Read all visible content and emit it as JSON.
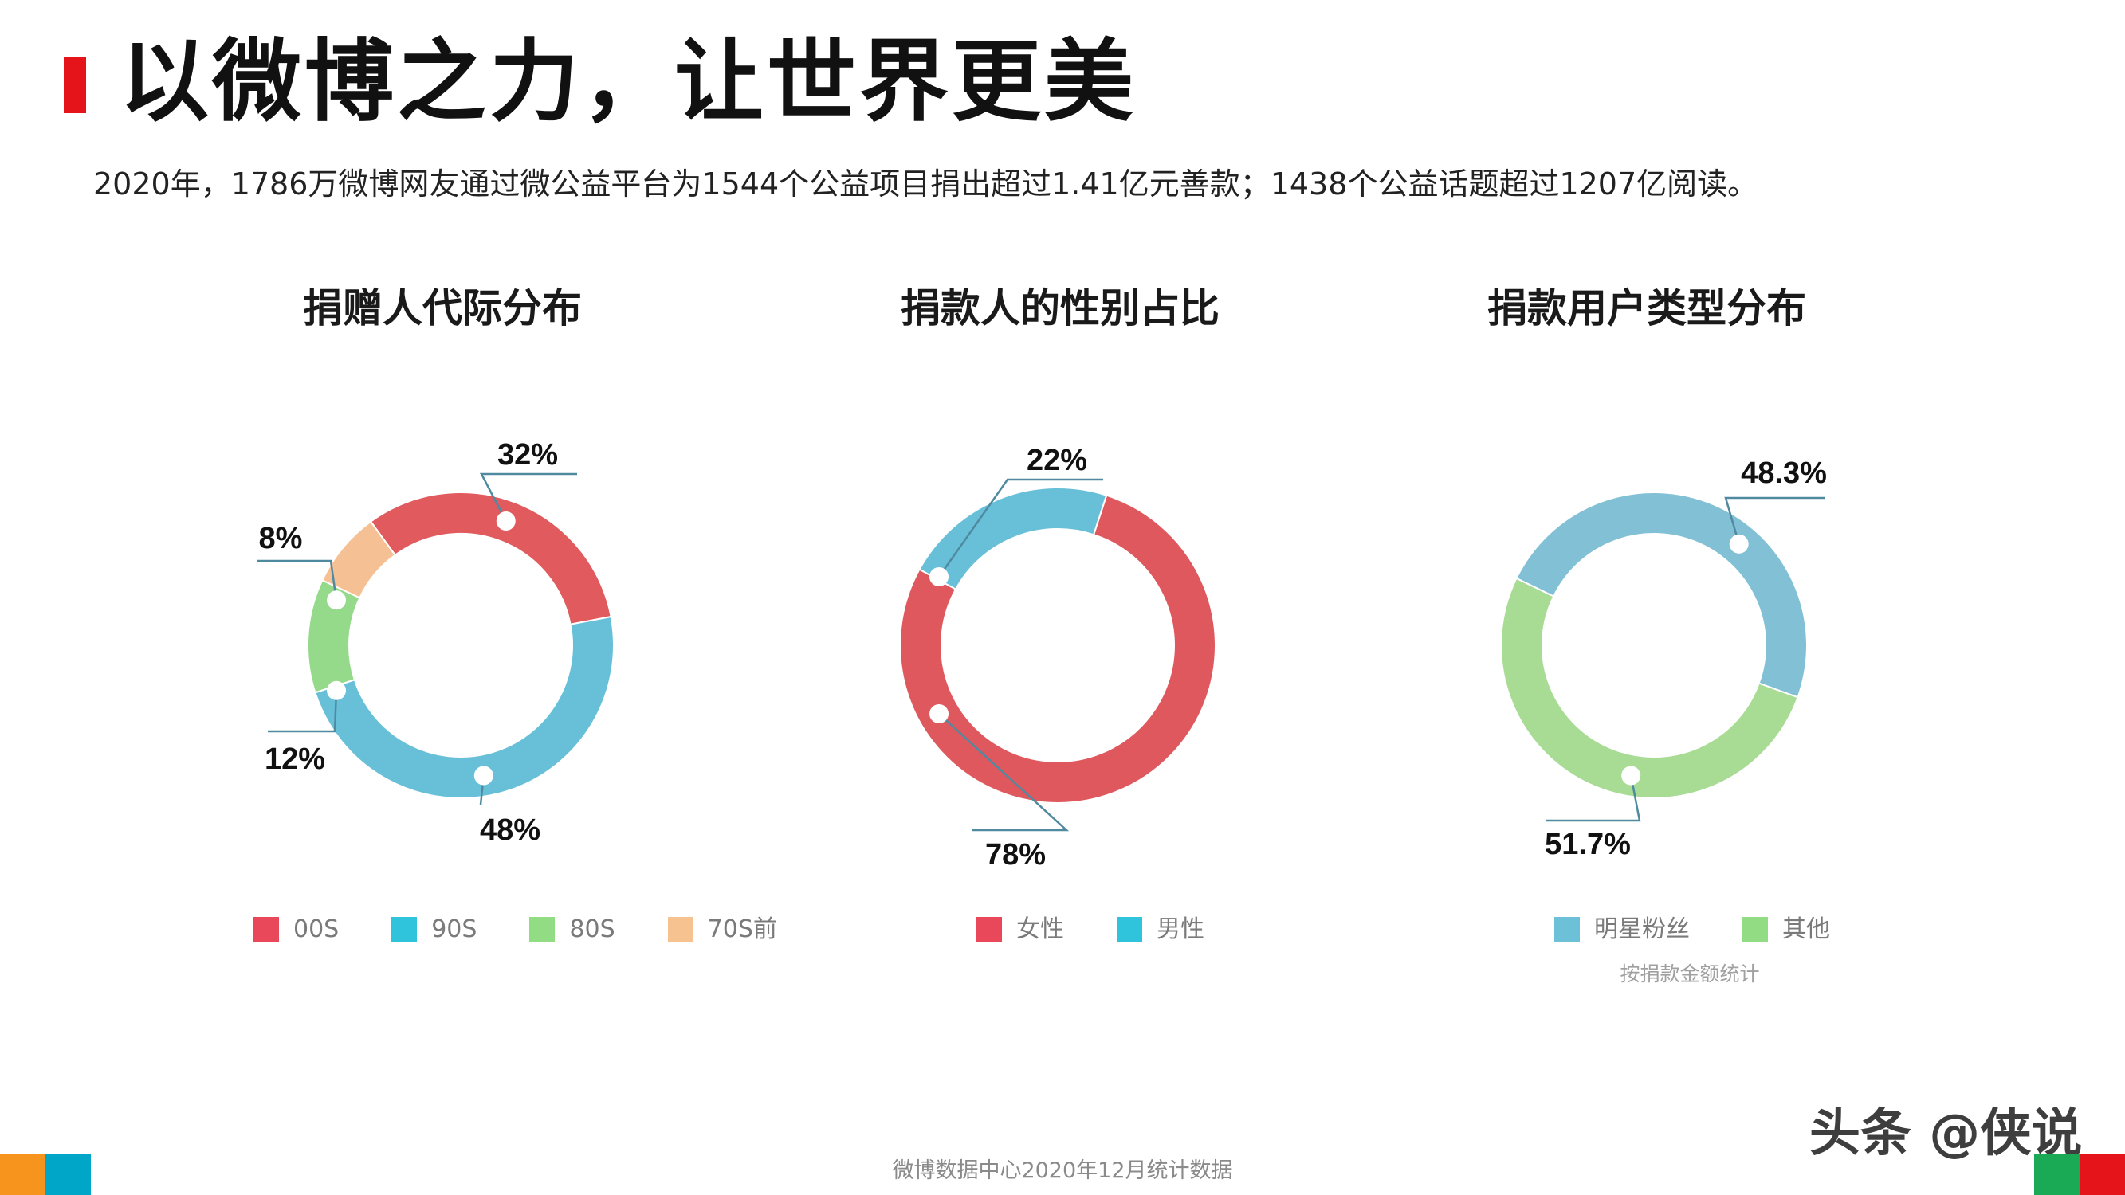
{
  "header": {
    "title": "以微博之力，让世界更美",
    "subtitle": "2020年，1786万微博网友通过微公益平台为1544个公益项目捐出超过1.41亿元善款；1438个公益话题超过1207亿阅读。"
  },
  "chart_data": [
    {
      "type": "pie",
      "title": "捐赠人代际分布",
      "categories": [
        "00S",
        "90S",
        "80S",
        "70S前"
      ],
      "values": [
        32,
        48,
        12,
        8
      ],
      "data_labels": [
        "32%",
        "48%",
        "12%",
        "8%"
      ],
      "colors": [
        "#e05a5e",
        "#68c0d8",
        "#95d98a",
        "#f5c194"
      ],
      "legend_colors": [
        "#e8485a",
        "#2fc4db",
        "#92dc84",
        "#f6c28f"
      ],
      "legend_position": "bottom"
    },
    {
      "type": "pie",
      "title": "捐款人的性别占比",
      "categories": [
        "女性",
        "男性"
      ],
      "values": [
        78,
        22
      ],
      "data_labels": [
        "78%",
        "22%"
      ],
      "colors": [
        "#df585e",
        "#68c0d8"
      ],
      "legend_colors": [
        "#e8485a",
        "#2fc4db"
      ],
      "legend_position": "bottom"
    },
    {
      "type": "pie",
      "title": "捐款用户类型分布",
      "categories": [
        "明星粉丝",
        "其他"
      ],
      "values": [
        48.3,
        51.7
      ],
      "data_labels": [
        "48.3%",
        "51.7%"
      ],
      "colors": [
        "#82c0d5",
        "#a8dc95"
      ],
      "legend_colors": [
        "#6cc0d8",
        "#92dc84"
      ],
      "legend_position": "bottom",
      "note": "按捐款金额统计"
    }
  ],
  "footer": {
    "source": "微博数据中心2020年12月统计数据",
    "watermark": "头条 @侠说"
  },
  "colors": {
    "accent": "#e5141b",
    "corner_orange": "#f7941d",
    "corner_blue": "#00a6c8",
    "corner_green": "#1aaa55",
    "corner_red": "#e5141b"
  }
}
